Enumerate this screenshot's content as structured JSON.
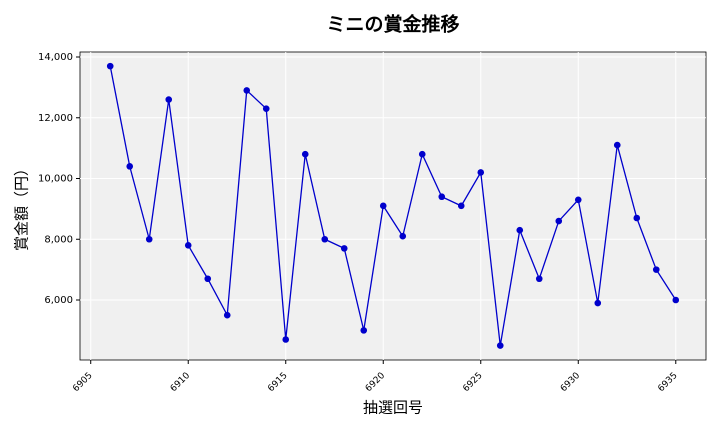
{
  "chart_data": {
    "type": "line",
    "title": "ミニの賞金推移",
    "x_label": "抽選回号",
    "y_label": "賞金額（円）",
    "x": [
      6906,
      6907,
      6908,
      6909,
      6910,
      6911,
      6912,
      6913,
      6914,
      6915,
      6916,
      6917,
      6918,
      6919,
      6920,
      6921,
      6922,
      6923,
      6924,
      6925,
      6926,
      6927,
      6928,
      6929,
      6930,
      6931,
      6932,
      6933,
      6934,
      6935
    ],
    "series": [
      {
        "name": "賞金額",
        "color": "#0000cc",
        "values": [
          13700,
          10400,
          8000,
          12600,
          7800,
          6700,
          5500,
          12900,
          12300,
          4700,
          10800,
          8000,
          7700,
          5000,
          9100,
          8100,
          10800,
          9400,
          9100,
          10200,
          4500,
          8300,
          6700,
          8600,
          9300,
          5900,
          11100,
          8700,
          7000,
          6000
        ]
      }
    ],
    "xlim": [
      6904.45,
      6936.55
    ],
    "xticks": [
      6905,
      6910,
      6915,
      6920,
      6925,
      6930,
      6935
    ],
    "ylim": [
      4025,
      14165
    ],
    "yticks": [
      {
        "value": 6000,
        "label": "6,000"
      },
      {
        "value": 8000,
        "label": "8,000"
      },
      {
        "value": 10000,
        "label": "10,000"
      },
      {
        "value": 12000,
        "label": "12,000"
      },
      {
        "value": 14000,
        "label": "14,000"
      }
    ],
    "grid": true
  }
}
